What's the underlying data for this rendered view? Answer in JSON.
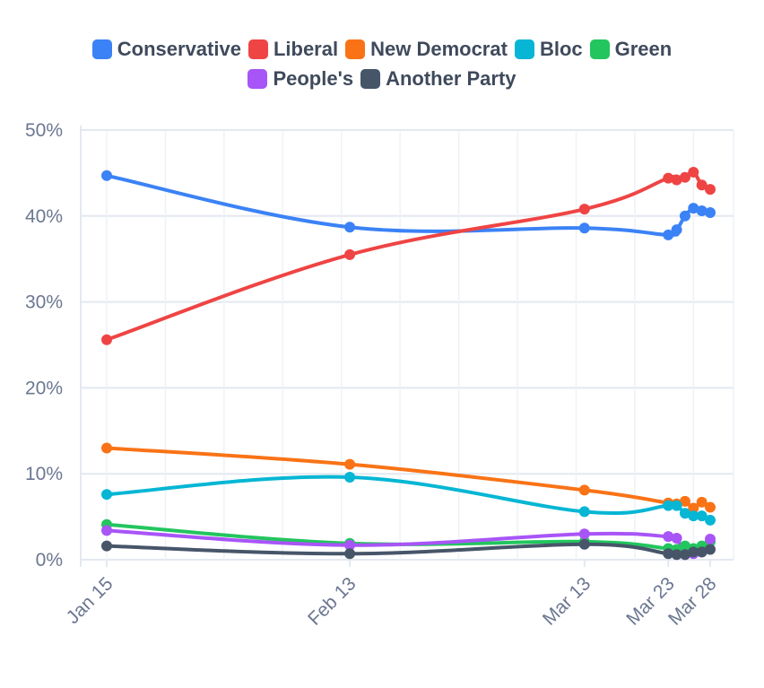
{
  "chart_data": {
    "type": "line",
    "title": "",
    "xlabel": "",
    "ylabel": "",
    "ylim": [
      0,
      50
    ],
    "yticks": [
      "0%",
      "10%",
      "20%",
      "30%",
      "40%",
      "50%"
    ],
    "grid": true,
    "legend_position": "top",
    "x": [
      "2025-01-15",
      "2025-02-13",
      "2025-03-13",
      "2025-03-23",
      "2025-03-24",
      "2025-03-25",
      "2025-03-26",
      "2025-03-27",
      "2025-03-28"
    ],
    "xtick_labels": [
      {
        "date": "2025-01-15",
        "label": "Jan 15"
      },
      {
        "date": "2025-02-13",
        "label": "Feb 13"
      },
      {
        "date": "2025-03-13",
        "label": "Mar 13"
      },
      {
        "date": "2025-03-23",
        "label": "Mar 23"
      },
      {
        "date": "2025-03-28",
        "label": "Mar 28"
      }
    ],
    "series": [
      {
        "name": "Conservative",
        "color": "#3b82f6",
        "values": [
          44.7,
          38.7,
          38.6,
          37.8,
          38.4,
          40.0,
          40.9,
          40.6,
          40.4
        ]
      },
      {
        "name": "Liberal",
        "color": "#ef4444",
        "values": [
          25.6,
          35.5,
          40.8,
          44.4,
          44.2,
          44.5,
          45.1,
          43.6,
          43.1
        ]
      },
      {
        "name": "New Democrat",
        "color": "#f97316",
        "values": [
          13.0,
          11.1,
          8.1,
          6.6,
          6.5,
          6.8,
          6.0,
          6.7,
          6.1
        ]
      },
      {
        "name": "Bloc",
        "color": "#06b6d4",
        "values": [
          7.6,
          9.6,
          5.6,
          6.3,
          6.3,
          5.4,
          5.1,
          5.1,
          4.6
        ]
      },
      {
        "name": "Green",
        "color": "#22c55e",
        "values": [
          4.1,
          1.9,
          2.1,
          1.3,
          1.2,
          1.6,
          1.3,
          1.6,
          2.1
        ]
      },
      {
        "name": "People's",
        "color": "#a855f7",
        "values": [
          3.4,
          1.7,
          3.0,
          2.7,
          2.5,
          0.6,
          0.7,
          0.9,
          2.4
        ]
      },
      {
        "name": "Another Party",
        "color": "#475569",
        "values": [
          1.6,
          0.7,
          1.8,
          0.7,
          0.6,
          0.6,
          0.9,
          0.9,
          1.2
        ]
      }
    ]
  }
}
